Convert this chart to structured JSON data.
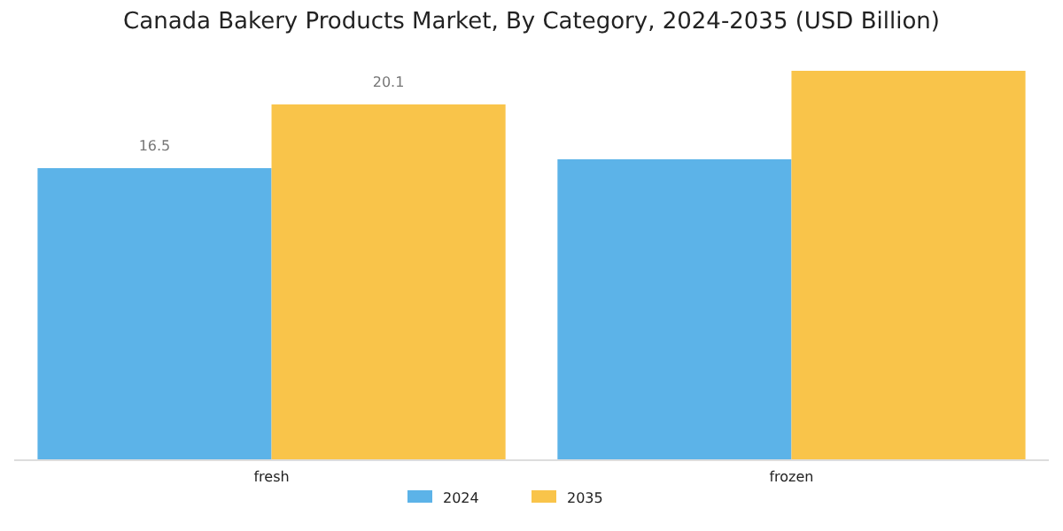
{
  "chart_data": {
    "type": "bar",
    "title": "Canada Bakery Products Market, By Category, 2024-2035 (USD Billion)",
    "categories": [
      "fresh",
      "frozen"
    ],
    "series": [
      {
        "name": "2024",
        "color": "#5cb3e8",
        "values": [
          16.5,
          17.0
        ],
        "value_labels": [
          "16.5",
          null
        ]
      },
      {
        "name": "2035",
        "color": "#f9c44a",
        "values": [
          20.1,
          22.0
        ],
        "value_labels": [
          "20.1",
          null
        ]
      }
    ],
    "legend": "bottom"
  }
}
